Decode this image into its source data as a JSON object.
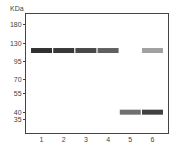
{
  "chart_data": {
    "type": "scatter",
    "ylabel": "KDa",
    "x": [
      1,
      2,
      3,
      4,
      5,
      6,
      6
    ],
    "values": [
      115,
      115,
      115,
      115,
      40,
      115,
      40
    ],
    "colors": [
      "#303030",
      "#383838",
      "#484848",
      "#606060",
      "#707070",
      "#a0a0a0",
      "#404040"
    ],
    "marker": "line",
    "xlim": [
      0.3,
      6.7
    ],
    "xticks": [
      1,
      2,
      3,
      4,
      5,
      6
    ],
    "ylim": [
      28,
      215
    ],
    "yticks": [
      180,
      130,
      95,
      70,
      55,
      40,
      35
    ],
    "log": "y",
    "grid": false
  }
}
